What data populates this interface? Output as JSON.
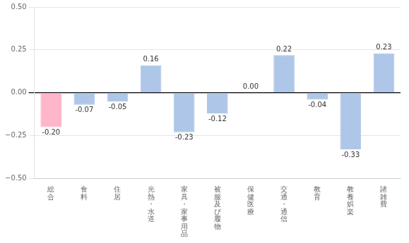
{
  "chart_data": {
    "type": "bar",
    "categories": [
      "総\n合",
      "食\n料",
      "住\n居",
      "光\n熱\n・\n水\n道",
      "家\n具\n・\n家\n事\n用\n品",
      "被\n服\n及\nび\n履\n物",
      "保\n健\n医\n療",
      "交\n通\n・\n通\n信",
      "教\n育",
      "教\n養\n娯\n楽",
      "諸\n雑\n費"
    ],
    "values": [
      -0.2,
      -0.07,
      -0.05,
      0.16,
      -0.23,
      -0.12,
      0.0,
      0.22,
      -0.04,
      -0.33,
      0.23
    ],
    "value_labels": [
      "-0.20",
      "-0.07",
      "-0.05",
      "0.16",
      "-0.23",
      "-0.12",
      "0.00",
      "0.22",
      "-0.04",
      "-0.33",
      "0.23"
    ],
    "data_labels": true,
    "colors": [
      "#ffb6c8",
      "#aec6e8",
      "#aec6e8",
      "#aec6e8",
      "#aec6e8",
      "#aec6e8",
      "#aec6e8",
      "#aec6e8",
      "#aec6e8",
      "#aec6e8",
      "#aec6e8"
    ],
    "ylim": [
      -0.5,
      0.5
    ],
    "yticks": [
      {
        "value": -0.5,
        "label": "−0.50"
      },
      {
        "value": -0.25,
        "label": "−0.25"
      },
      {
        "value": 0,
        "label": "0.00"
      },
      {
        "value": 0.25,
        "label": "0.25"
      },
      {
        "value": 0.5,
        "label": "0.50"
      }
    ],
    "grid": true
  }
}
